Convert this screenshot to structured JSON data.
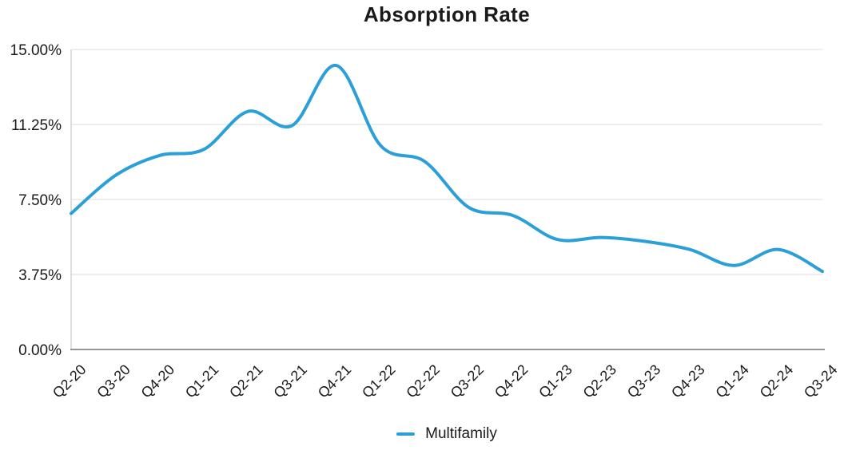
{
  "chart_data": {
    "type": "line",
    "title": "Absorption Rate",
    "categories": [
      "Q2-20",
      "Q3-20",
      "Q4-20",
      "Q1-21",
      "Q2-21",
      "Q3-21",
      "Q4-21",
      "Q1-22",
      "Q2-22",
      "Q3-22",
      "Q4-22",
      "Q1-23",
      "Q2-23",
      "Q3-23",
      "Q4-23",
      "Q1-24",
      "Q2-24",
      "Q3-24"
    ],
    "series": [
      {
        "name": "Multifamily",
        "color": "#2b9fd8",
        "values": [
          6.8,
          8.7,
          9.7,
          10.0,
          11.9,
          11.2,
          14.2,
          10.2,
          9.4,
          7.1,
          6.7,
          5.5,
          5.6,
          5.4,
          5.0,
          4.2,
          5.0,
          3.9
        ]
      }
    ],
    "xlabel": "",
    "ylabel": "",
    "ylim": [
      0,
      15
    ],
    "y_ticks": [
      {
        "value": 15,
        "label": "15.00%"
      },
      {
        "value": 11.25,
        "label": "11.25%"
      },
      {
        "value": 7.5,
        "label": "7.50%"
      },
      {
        "value": 3.75,
        "label": "3.75%"
      },
      {
        "value": 0,
        "label": "0.00%"
      }
    ],
    "grid": "horizontal",
    "legend_position": "bottom",
    "line_smoothing": true
  }
}
